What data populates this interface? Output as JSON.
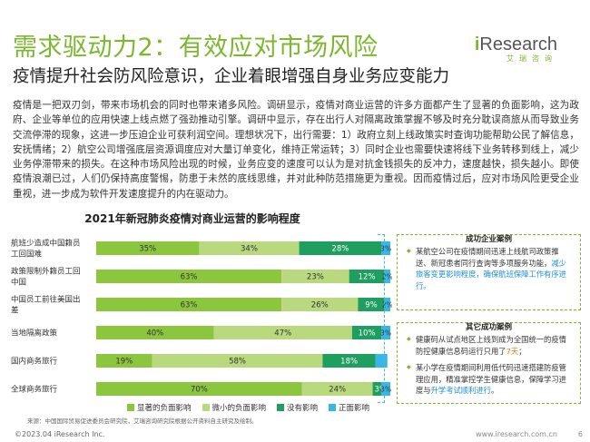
{
  "header": {
    "title": "需求驱动力2：有效应对市场风险",
    "subtitle": "疫情提升社会防风险意识，企业着眼增强自身业务应变能力",
    "logo_en": "Research",
    "logo_i": "i",
    "logo_cn": "艾瑞咨询"
  },
  "body_text": "疫情是一把双刃剑，带来市场机会的同时也带来诸多风险。调研显示，疫情对商业运营的许多方面都产生了显著的负面影响，这为政府、企业等单位的应用快速上线点燃了强劲推动引擎。调研中显示，存在出行人对隔离政策掌握不够及时充分耽误商旅从而导致业务交流停滞的现象，这进一步压迫企业可获利润空间。理想状况下，出行需要：1）政府立刻上线政策实时查询功能帮助公民了解信息，安抚情绪；2）航空公司增强底层资源调度应对大量订单变化，维持正常运转；3）同时企业也需要快速将线下业务转移到线上，减少业务停滞带来的损失。在这种市场风险出现的时候，业务应变的速度可以认为是对抗金钱损失的反冲力，速度越快，损失越小。即使疫情浪潮已过，人们仍保持高度警惕，防患于未然的底线思维，并对此种防范措施更为重视。因而疫情过后，应对市场风险更受企业重视，进一步成为软件开发速度提升的内在驱动力。",
  "chart_data": {
    "type": "bar",
    "orientation": "horizontal",
    "stacked": true,
    "title": "2021年新冠肺炎疫情对商业运营的影响程度",
    "categories": [
      "航班少造成中国籍员工回国难",
      "政策限制外籍员工回中国",
      "中国员工前往美国出差",
      "当地隔离政策",
      "国内商务旅行",
      "全球商务旅行"
    ],
    "series": [
      {
        "name": "显著的负面影响",
        "values": [
          35,
          63,
          63,
          40,
          19,
          70
        ],
        "labels": [
          "35%",
          "63%",
          "63%",
          "40%",
          "19%",
          "70%"
        ]
      },
      {
        "name": "微小的负面影响",
        "values": [
          34,
          23,
          26,
          47,
          58,
          24
        ],
        "labels": [
          "34%",
          "23%",
          "26%",
          "47%",
          "58%",
          "24%"
        ]
      },
      {
        "name": "没有影响",
        "values": [
          28,
          12,
          9,
          10,
          18,
          3
        ],
        "labels": [
          "28%",
          "12%",
          "9%",
          "10%",
          "18%",
          "3%"
        ]
      },
      {
        "name": "正面影响",
        "values": [
          3,
          2,
          2,
          3,
          4,
          3
        ],
        "labels": [
          "3%",
          "2%",
          "2%",
          "3%",
          "",
          "3%"
        ]
      }
    ],
    "colors": [
      "#8cc63f",
      "#b9d97e",
      "#1e9e5f",
      "#39b6e8"
    ],
    "xlim": [
      0,
      100
    ],
    "legend": "bottom"
  },
  "cases": {
    "success_head": "成功企业案例",
    "success_item_a": "某航空公司在疫情期间迅速上线航司政策推送、新冠患者同行查询等多项服务功能，",
    "success_item_b": "减少旅客变更影响程度，确保航班保障工作有序进行。",
    "other_head": "其它成功案例",
    "other1_a": "健康码从试点地区上线到成为全国统一的疫情防控健康信息码运行只用了",
    "other1_b": "7天",
    "other1_c": "；",
    "other2_a": "某小学在疫情期间利用低代码迅速搭建防疫管理应用，精准掌控学生健康信息，保障学习进度与",
    "other2_b": "升学考试顺利进行",
    "other2_c": "。"
  },
  "source": "来源：中国国际贸易促进委员会研究院，艾瑞咨询研究院根据公开资料自主研究及绘制。",
  "footer": {
    "copyright": "©2023.04 iResearch Inc.",
    "website": "www.iresearch.com.cn",
    "page": "6"
  }
}
